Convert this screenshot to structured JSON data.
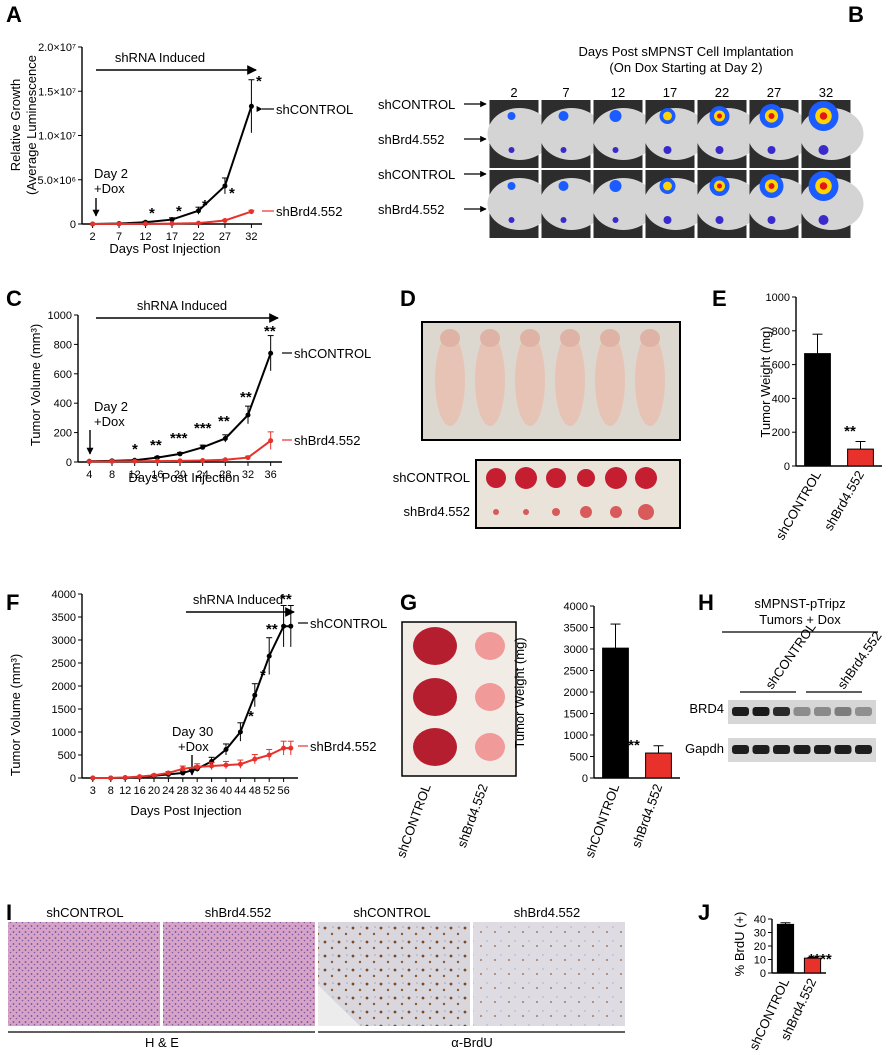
{
  "panels": [
    "A",
    "B",
    "C",
    "D",
    "E",
    "F",
    "G",
    "H",
    "I",
    "J"
  ],
  "colors": {
    "control": "#000000",
    "knockdown": "#e8312b"
  },
  "panelA": {
    "arrow_label": "shRNA Induced",
    "ylabel_line1": "Relative Growth",
    "ylabel_line2": "(Average Luminescence",
    "xlabel": "Days Post Injection",
    "dox_label_line1": "Day 2",
    "dox_label_line2": "+Dox",
    "legend_control": "shCONTROL",
    "legend_knockdown": "shBrd4.552",
    "stars": [
      "*",
      "*",
      "*",
      "*",
      "*",
      "*"
    ]
  },
  "panelB": {
    "title_line1": "Days Post sMPNST Cell Implantation",
    "title_line2": "(On Dox Starting at Day 2)",
    "days": [
      "2",
      "7",
      "12",
      "17",
      "22",
      "27",
      "32"
    ],
    "rows": [
      "shCONTROL",
      "shBrd4.552",
      "shCONTROL",
      "shBrd4.552"
    ]
  },
  "panelC": {
    "arrow_label": "shRNA Induced",
    "ylabel": "Tumor Volume (mm³)",
    "xlabel": "Days Post Injection",
    "dox_label_line1": "Day 2",
    "dox_label_line2": "+Dox",
    "legend_control": "shCONTROL",
    "legend_knockdown": "shBrd4.552",
    "stars": [
      "*",
      "**",
      "***",
      "***",
      "**",
      "**",
      "**"
    ]
  },
  "panelD": {
    "row_labels": [
      "shCONTROL",
      "shBrd4.552"
    ]
  },
  "panelE": {
    "ylabel": "Tumor Weight (mg)",
    "stars": "**"
  },
  "panelF": {
    "arrow_label": "shRNA Induced",
    "ylabel": "Tumor Volume (mm³)",
    "xlabel": "Days Post Injection",
    "dox_label_line1": "Day 30",
    "dox_label_line2": "+Dox",
    "legend_control": "shCONTROL",
    "legend_knockdown": "shBrd4.552",
    "stars": [
      "*",
      "*",
      "**",
      "**"
    ]
  },
  "panelG": {
    "photo_labels": [
      "shCONTROL",
      "shBrd4.552"
    ],
    "ylabel": "Tumor Weight (mg)",
    "stars": "**"
  },
  "panelH": {
    "title_line1": "sMPNST-pTripz",
    "title_line2": "Tumors + Dox",
    "lane_labels": [
      "shCONTROL",
      "shBrd4.552"
    ],
    "bands": [
      "BRD4",
      "Gapdh"
    ]
  },
  "panelI": {
    "labels_he": [
      "shCONTROL",
      "shBrd4.552"
    ],
    "labels_brdu": [
      "shCONTROL",
      "shBrd4.552"
    ],
    "stain_he": "H & E",
    "stain_brdu": "α-BrdU"
  },
  "panelJ": {
    "ylabel": "% BrdU (+)",
    "stars": "****"
  },
  "chart_data": [
    {
      "panel": "A",
      "type": "line",
      "x": [
        2,
        7,
        12,
        17,
        22,
        27,
        32
      ],
      "ylim": [
        0,
        20000000
      ],
      "ytick_labels": [
        "0",
        "5.0×10⁶",
        "1.0×10⁷",
        "1.5×10⁷",
        "2.0×10⁷"
      ],
      "xtick_labels": [
        "2",
        "7",
        "12",
        "17",
        "22",
        "27",
        "32"
      ],
      "series": [
        {
          "name": "shCONTROL",
          "values": [
            0,
            50000,
            200000,
            500000,
            1500000,
            4300000,
            13300000
          ],
          "errors": [
            0,
            30000,
            100000,
            200000,
            400000,
            900000,
            3000000
          ]
        },
        {
          "name": "shBrd4.552",
          "values": [
            0,
            10000,
            20000,
            40000,
            100000,
            400000,
            1400000
          ],
          "errors": [
            0,
            5000,
            10000,
            15000,
            30000,
            80000,
            150000
          ]
        }
      ]
    },
    {
      "panel": "C",
      "type": "line",
      "x": [
        4,
        8,
        12,
        16,
        20,
        24,
        28,
        32,
        36
      ],
      "ylim": [
        0,
        1000
      ],
      "ytick_labels": [
        "0",
        "200",
        "400",
        "600",
        "800",
        "1000"
      ],
      "xtick_labels": [
        "4",
        "8",
        "12",
        "16",
        "20",
        "24",
        "28",
        "32",
        "36"
      ],
      "series": [
        {
          "name": "shCONTROL",
          "values": [
            5,
            8,
            12,
            30,
            55,
            100,
            160,
            320,
            740
          ],
          "errors": [
            2,
            3,
            4,
            8,
            10,
            15,
            25,
            60,
            120
          ]
        },
        {
          "name": "shBrd4.552",
          "values": [
            3,
            4,
            5,
            6,
            8,
            10,
            15,
            30,
            145
          ],
          "errors": [
            1,
            1,
            1,
            2,
            2,
            3,
            5,
            10,
            60
          ]
        }
      ]
    },
    {
      "panel": "E",
      "type": "bar",
      "categories": [
        "shCONTROL",
        "shBrd4.552"
      ],
      "values": [
        665,
        100
      ],
      "errors": [
        115,
        45
      ],
      "ylim": [
        0,
        1000
      ],
      "ytick_labels": [
        "0",
        "200",
        "400",
        "600",
        "800",
        "1000"
      ]
    },
    {
      "panel": "F",
      "type": "line",
      "x": [
        3,
        8,
        12,
        16,
        20,
        24,
        28,
        32,
        36,
        40,
        44,
        48,
        52,
        56,
        58
      ],
      "ylim": [
        0,
        4000
      ],
      "ytick_labels": [
        "0",
        "500",
        "1000",
        "1500",
        "2000",
        "2500",
        "3000",
        "3500",
        "4000"
      ],
      "xtick_labels": [
        "3",
        "8",
        "12",
        "16",
        "20",
        "24",
        "28",
        "32",
        "36",
        "40",
        "44",
        "48",
        "52",
        "56"
      ],
      "series": [
        {
          "name": "shCONTROL",
          "values": [
            0,
            0,
            5,
            20,
            50,
            80,
            110,
            200,
            360,
            620,
            1000,
            1800,
            2650,
            3300,
            3300
          ],
          "errors": [
            0,
            0,
            5,
            10,
            20,
            30,
            40,
            60,
            90,
            120,
            200,
            250,
            400,
            450,
            450
          ]
        },
        {
          "name": "shBrd4.552",
          "values": [
            0,
            0,
            10,
            30,
            60,
            110,
            200,
            240,
            260,
            280,
            300,
            410,
            500,
            650,
            650
          ],
          "errors": [
            0,
            0,
            5,
            10,
            20,
            30,
            60,
            70,
            80,
            80,
            90,
            100,
            120,
            150,
            150
          ]
        }
      ]
    },
    {
      "panel": "G",
      "type": "bar",
      "categories": [
        "shCONTROL",
        "shBrd4.552"
      ],
      "values": [
        3020,
        580
      ],
      "errors": [
        560,
        170
      ],
      "ylim": [
        0,
        4000
      ],
      "ytick_labels": [
        "0",
        "500",
        "1000",
        "1500",
        "2000",
        "2500",
        "3000",
        "3500",
        "4000"
      ]
    },
    {
      "panel": "J",
      "type": "bar",
      "categories": [
        "shCONTROL",
        "shBrd4.552"
      ],
      "values": [
        36,
        11
      ],
      "errors": [
        1.2,
        0.5
      ],
      "ylim": [
        0,
        40
      ],
      "ytick_labels": [
        "0",
        "10",
        "20",
        "30",
        "40"
      ]
    }
  ]
}
